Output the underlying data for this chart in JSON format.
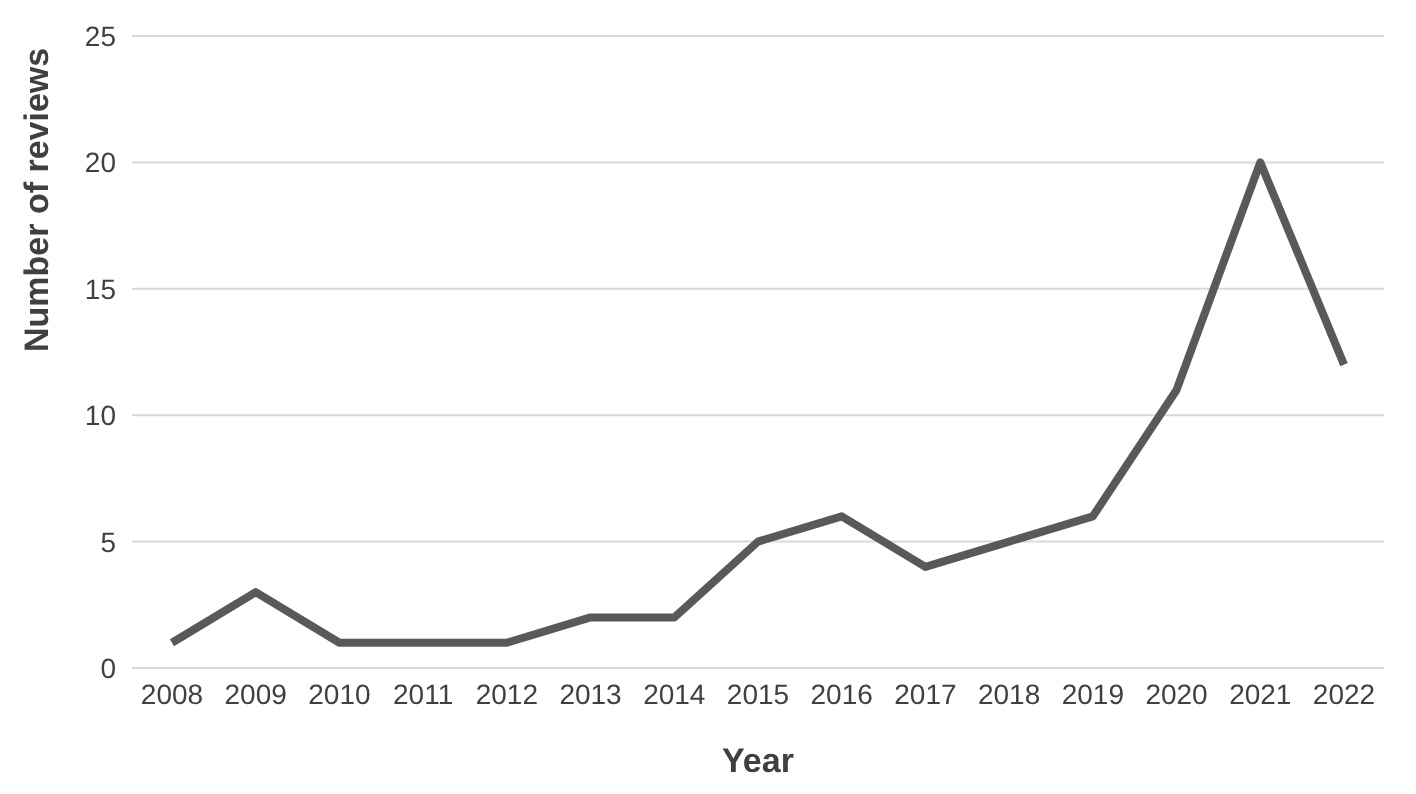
{
  "chart_data": {
    "type": "line",
    "xlabel": "Year",
    "ylabel": "Number of reviews",
    "categories": [
      "2008",
      "2009",
      "2010",
      "2011",
      "2012",
      "2013",
      "2014",
      "2015",
      "2016",
      "2017",
      "2018",
      "2019",
      "2020",
      "2021",
      "2022"
    ],
    "series": [
      {
        "color": "#595959",
        "values": [
          1,
          3,
          1,
          1,
          1,
          2,
          2,
          5,
          6,
          4,
          5,
          6,
          11,
          20,
          12
        ]
      }
    ],
    "ylim": [
      0,
      25
    ],
    "yticks": [
      0,
      5,
      10,
      15,
      20,
      25
    ],
    "grid": "y",
    "legend": false,
    "marker": "none",
    "line_style": "solid"
  }
}
